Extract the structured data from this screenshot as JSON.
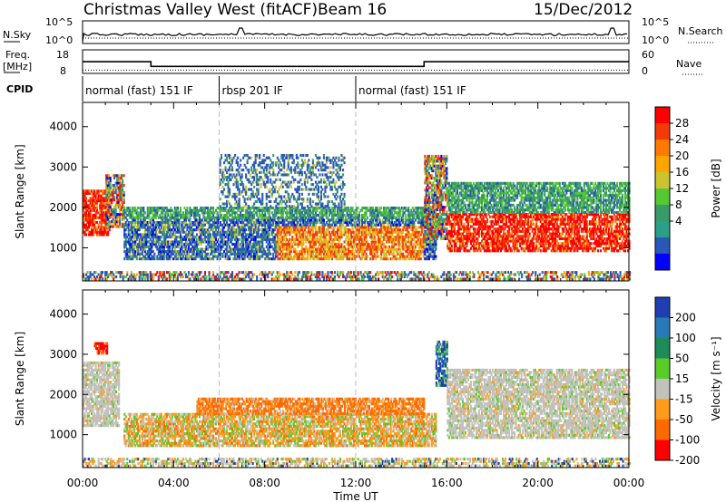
{
  "header": {
    "title": "Christmas Valley West (fitACF)",
    "beam": "Beam 16",
    "date": "15/Dec/2012"
  },
  "chart_data": [
    {
      "type": "line",
      "panel": "noise",
      "left_label": "N.Sky",
      "right_label": "N.Search",
      "left_ticks": [
        "10^5",
        "10^0"
      ],
      "right_ticks": [
        "10^5",
        "10^0"
      ],
      "series": [
        {
          "name": "N.Sky",
          "style": "solid"
        },
        {
          "name": "N.Search",
          "style": "dotted"
        }
      ]
    },
    {
      "type": "line",
      "panel": "frequency",
      "left_label_lines": [
        "Freq.",
        "[MHz]"
      ],
      "right_label": "Nave",
      "left_ticks": [
        "18",
        "8"
      ],
      "right_ticks": [
        "60",
        "0"
      ],
      "freq_steps": [
        {
          "from": 0,
          "to": 3,
          "value": 11.8
        },
        {
          "from": 3,
          "to": 15,
          "value": 9.8
        },
        {
          "from": 15,
          "to": 24,
          "value": 11.8
        }
      ],
      "nave_value": 20
    },
    {
      "type": "table",
      "panel": "cpid",
      "label": "CPID",
      "segments": [
        {
          "from": 0,
          "to": 6,
          "label": "normal (fast) 151 IF"
        },
        {
          "from": 6,
          "to": 12,
          "label": "rbsp 201 IF"
        },
        {
          "from": 12,
          "to": 24,
          "label": "normal (fast) 151 IF"
        }
      ]
    },
    {
      "type": "heatmap",
      "panel": "power",
      "ylabel": "Slant Range [km]",
      "colorbar_label": "Power [dB]",
      "ylim": [
        180,
        4600
      ],
      "yticks": [
        1000,
        2000,
        3000,
        4000
      ],
      "colorbar": {
        "ticks": [
          "28",
          "24",
          "20",
          "16",
          "12",
          "8",
          "4"
        ],
        "colors": [
          "#ff0000",
          "#f53a0a",
          "#ff7a00",
          "#ffa500",
          "#cbc430",
          "#55c832",
          "#3a9a6a",
          "#2aa08a",
          "#2a58b8",
          "#0000ff"
        ]
      },
      "echo_regions": [
        {
          "t0": 0.0,
          "t1": 1.2,
          "r0": 1300,
          "r1": 2400,
          "level": "high"
        },
        {
          "t0": 1.0,
          "t1": 1.8,
          "r0": 1500,
          "r1": 2800,
          "level": "mixed"
        },
        {
          "t0": 1.8,
          "t1": 15.5,
          "r0": 700,
          "r1": 2000,
          "level": "mid"
        },
        {
          "t0": 6.0,
          "t1": 11.5,
          "r0": 2000,
          "r1": 3300,
          "level": "low"
        },
        {
          "t0": 15.0,
          "t1": 16.0,
          "r0": 1200,
          "r1": 3300,
          "level": "mixed"
        },
        {
          "t0": 16.0,
          "t1": 24.0,
          "r0": 900,
          "r1": 1850,
          "level": "high"
        },
        {
          "t0": 16.0,
          "t1": 24.0,
          "r0": 1850,
          "r1": 2600,
          "level": "mid"
        },
        {
          "t0": 0.0,
          "t1": 24.0,
          "r0": 200,
          "r1": 420,
          "level": "ground"
        }
      ]
    },
    {
      "type": "heatmap",
      "panel": "velocity",
      "ylabel": "Slant Range [km]",
      "xlabel": "Time UT",
      "xticks": [
        "00:00",
        "04:00",
        "08:00",
        "12:00",
        "16:00",
        "20:00",
        "00:00"
      ],
      "colorbar_label": "Velocity [m s⁻¹]",
      "ylim": [
        180,
        4600
      ],
      "yticks": [
        1000,
        2000,
        3000,
        4000
      ],
      "colorbar": {
        "ticks": [
          "200",
          "100",
          "50",
          "15",
          "-15",
          "-50",
          "-100",
          "-200"
        ],
        "colors": [
          "#1f3fb0",
          "#2a7ab8",
          "#1f8a5a",
          "#5acc2a",
          "#c2c2bc",
          "#ff9a1a",
          "#ff6a00",
          "#ff0000"
        ]
      },
      "echo_regions": [
        {
          "t0": 0.0,
          "t1": 1.6,
          "r0": 1200,
          "r1": 2800,
          "level": "near_zero"
        },
        {
          "t0": 0.5,
          "t1": 1.1,
          "r0": 3000,
          "r1": 3300,
          "level": "negative_fast"
        },
        {
          "t0": 1.8,
          "t1": 15.5,
          "r0": 700,
          "r1": 1500,
          "level": "mixed_orange_green"
        },
        {
          "t0": 5.0,
          "t1": 15.0,
          "r0": 1500,
          "r1": 1900,
          "level": "negative"
        },
        {
          "t0": 15.5,
          "t1": 16.0,
          "r0": 2200,
          "r1": 3300,
          "level": "positive"
        },
        {
          "t0": 16.0,
          "t1": 24.0,
          "r0": 900,
          "r1": 2600,
          "level": "near_zero"
        },
        {
          "t0": 0.0,
          "t1": 24.0,
          "r0": 200,
          "r1": 420,
          "level": "ground"
        }
      ]
    }
  ]
}
